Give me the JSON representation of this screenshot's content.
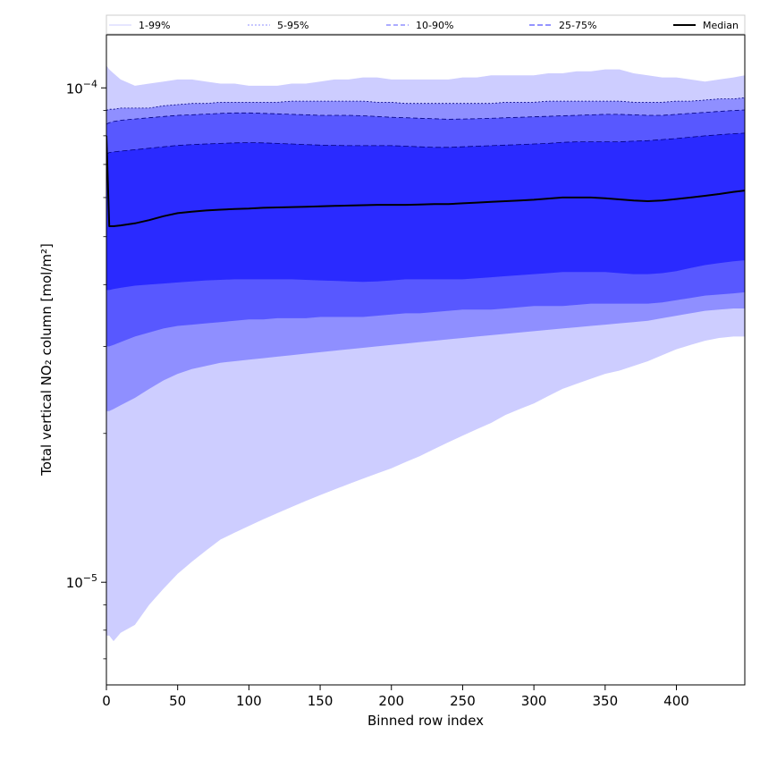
{
  "chart_data": {
    "type": "area",
    "xlabel": "Binned row index",
    "ylabel": "Total vertical NO₂ column [mol/m²]",
    "xlim": [
      0,
      448
    ],
    "ylim": [
      6.2e-06,
      0.000128
    ],
    "yscale": "log",
    "x_ticks": [
      0,
      50,
      100,
      150,
      200,
      250,
      300,
      350,
      400
    ],
    "y_ticks": [
      {
        "value": 1e-05,
        "base": "10",
        "exponent": "−5"
      },
      {
        "value": 0.0001,
        "base": "10",
        "exponent": "−4"
      }
    ],
    "legend_position": "top",
    "x": [
      0,
      2,
      5,
      10,
      20,
      30,
      40,
      50,
      60,
      70,
      80,
      90,
      100,
      110,
      120,
      130,
      140,
      150,
      160,
      170,
      180,
      190,
      200,
      210,
      220,
      230,
      240,
      250,
      260,
      270,
      280,
      290,
      300,
      310,
      320,
      330,
      340,
      350,
      360,
      370,
      380,
      390,
      400,
      410,
      420,
      430,
      440,
      448
    ],
    "bands": [
      {
        "name": "1-99%",
        "color": "#cdcdff",
        "lower": [
          7.8e-06,
          7.8e-06,
          7.6e-06,
          7.9e-06,
          8.2e-06,
          9e-06,
          9.7e-06,
          1.04e-05,
          1.1e-05,
          1.16e-05,
          1.22e-05,
          1.26e-05,
          1.3e-05,
          1.34e-05,
          1.38e-05,
          1.42e-05,
          1.46e-05,
          1.5e-05,
          1.54e-05,
          1.58e-05,
          1.62e-05,
          1.66e-05,
          1.7e-05,
          1.75e-05,
          1.8e-05,
          1.86e-05,
          1.92e-05,
          1.98e-05,
          2.04e-05,
          2.1e-05,
          2.18e-05,
          2.24e-05,
          2.3e-05,
          2.38e-05,
          2.46e-05,
          2.52e-05,
          2.58e-05,
          2.64e-05,
          2.68e-05,
          2.74e-05,
          2.8e-05,
          2.88e-05,
          2.96e-05,
          3.02e-05,
          3.08e-05,
          3.12e-05,
          3.14e-05,
          3.14e-05
        ],
        "upper": [
          0.000111,
          0.000109,
          0.000107,
          0.000104,
          0.000101,
          0.000102,
          0.000103,
          0.000104,
          0.000104,
          0.000103,
          0.000102,
          0.000102,
          0.000101,
          0.000101,
          0.000101,
          0.000102,
          0.000102,
          0.000103,
          0.000104,
          0.000104,
          0.000105,
          0.000105,
          0.000104,
          0.000104,
          0.000104,
          0.000104,
          0.000104,
          0.000105,
          0.000105,
          0.000106,
          0.000106,
          0.000106,
          0.000106,
          0.000107,
          0.000107,
          0.000108,
          0.000108,
          0.000109,
          0.000109,
          0.000107,
          0.000106,
          0.000105,
          0.000105,
          0.000104,
          0.000103,
          0.000104,
          0.000105,
          0.000106
        ]
      },
      {
        "name": "5-95%",
        "color": "#8f8fff",
        "lower": [
          2.22e-05,
          2.22e-05,
          2.24e-05,
          2.28e-05,
          2.36e-05,
          2.46e-05,
          2.56e-05,
          2.64e-05,
          2.7e-05,
          2.74e-05,
          2.78e-05,
          2.8e-05,
          2.82e-05,
          2.84e-05,
          2.86e-05,
          2.88e-05,
          2.9e-05,
          2.92e-05,
          2.94e-05,
          2.96e-05,
          2.98e-05,
          3e-05,
          3.02e-05,
          3.04e-05,
          3.06e-05,
          3.08e-05,
          3.1e-05,
          3.12e-05,
          3.14e-05,
          3.16e-05,
          3.18e-05,
          3.2e-05,
          3.22e-05,
          3.24e-05,
          3.26e-05,
          3.28e-05,
          3.3e-05,
          3.32e-05,
          3.34e-05,
          3.36e-05,
          3.38e-05,
          3.42e-05,
          3.46e-05,
          3.5e-05,
          3.54e-05,
          3.56e-05,
          3.58e-05,
          3.58e-05
        ],
        "upper": [
          9e-05,
          9.05e-05,
          9.05e-05,
          9.1e-05,
          9.1e-05,
          9.1e-05,
          9.2e-05,
          9.25e-05,
          9.3e-05,
          9.3e-05,
          9.35e-05,
          9.35e-05,
          9.35e-05,
          9.35e-05,
          9.35e-05,
          9.4e-05,
          9.4e-05,
          9.4e-05,
          9.4e-05,
          9.4e-05,
          9.4e-05,
          9.35e-05,
          9.35e-05,
          9.3e-05,
          9.3e-05,
          9.3e-05,
          9.3e-05,
          9.3e-05,
          9.3e-05,
          9.3e-05,
          9.35e-05,
          9.35e-05,
          9.35e-05,
          9.4e-05,
          9.4e-05,
          9.4e-05,
          9.4e-05,
          9.4e-05,
          9.4e-05,
          9.35e-05,
          9.35e-05,
          9.35e-05,
          9.4e-05,
          9.4e-05,
          9.45e-05,
          9.5e-05,
          9.5e-05,
          9.55e-05
        ]
      },
      {
        "name": "10-90%",
        "color": "#5858ff",
        "lower": [
          3e-05,
          3e-05,
          3.02e-05,
          3.06e-05,
          3.14e-05,
          3.2e-05,
          3.26e-05,
          3.3e-05,
          3.32e-05,
          3.34e-05,
          3.36e-05,
          3.38e-05,
          3.4e-05,
          3.4e-05,
          3.42e-05,
          3.42e-05,
          3.42e-05,
          3.44e-05,
          3.44e-05,
          3.44e-05,
          3.44e-05,
          3.46e-05,
          3.48e-05,
          3.5e-05,
          3.5e-05,
          3.52e-05,
          3.54e-05,
          3.56e-05,
          3.56e-05,
          3.56e-05,
          3.58e-05,
          3.6e-05,
          3.62e-05,
          3.62e-05,
          3.62e-05,
          3.64e-05,
          3.66e-05,
          3.66e-05,
          3.66e-05,
          3.66e-05,
          3.66e-05,
          3.68e-05,
          3.72e-05,
          3.76e-05,
          3.8e-05,
          3.82e-05,
          3.84e-05,
          3.86e-05
        ],
        "upper": [
          8.45e-05,
          8.5e-05,
          8.55e-05,
          8.6e-05,
          8.65e-05,
          8.7e-05,
          8.75e-05,
          8.8e-05,
          8.82e-05,
          8.85e-05,
          8.88e-05,
          8.9e-05,
          8.9e-05,
          8.88e-05,
          8.86e-05,
          8.84e-05,
          8.82e-05,
          8.8e-05,
          8.8e-05,
          8.8e-05,
          8.78e-05,
          8.75e-05,
          8.72e-05,
          8.7e-05,
          8.68e-05,
          8.66e-05,
          8.64e-05,
          8.65e-05,
          8.66e-05,
          8.68e-05,
          8.7e-05,
          8.72e-05,
          8.74e-05,
          8.76e-05,
          8.78e-05,
          8.8e-05,
          8.82e-05,
          8.84e-05,
          8.84e-05,
          8.82e-05,
          8.8e-05,
          8.8e-05,
          8.84e-05,
          8.88e-05,
          8.92e-05,
          8.96e-05,
          9e-05,
          9.02e-05
        ]
      },
      {
        "name": "25-75%",
        "color": "#2a2aff",
        "lower": [
          3.9e-05,
          3.9e-05,
          3.92e-05,
          3.94e-05,
          3.98e-05,
          4e-05,
          4.02e-05,
          4.04e-05,
          4.06e-05,
          4.08e-05,
          4.09e-05,
          4.1e-05,
          4.1e-05,
          4.1e-05,
          4.1e-05,
          4.1e-05,
          4.09e-05,
          4.08e-05,
          4.07e-05,
          4.06e-05,
          4.05e-05,
          4.06e-05,
          4.08e-05,
          4.1e-05,
          4.1e-05,
          4.1e-05,
          4.1e-05,
          4.1e-05,
          4.12e-05,
          4.14e-05,
          4.16e-05,
          4.18e-05,
          4.2e-05,
          4.22e-05,
          4.24e-05,
          4.24e-05,
          4.24e-05,
          4.24e-05,
          4.22e-05,
          4.2e-05,
          4.2e-05,
          4.22e-05,
          4.26e-05,
          4.32e-05,
          4.38e-05,
          4.42e-05,
          4.46e-05,
          4.48e-05
        ],
        "upper": [
          7.35e-05,
          7.4e-05,
          7.42e-05,
          7.45e-05,
          7.5e-05,
          7.55e-05,
          7.6e-05,
          7.65e-05,
          7.68e-05,
          7.7e-05,
          7.72e-05,
          7.74e-05,
          7.75e-05,
          7.74e-05,
          7.72e-05,
          7.7e-05,
          7.68e-05,
          7.66e-05,
          7.65e-05,
          7.64e-05,
          7.64e-05,
          7.64e-05,
          7.64e-05,
          7.62e-05,
          7.6e-05,
          7.58e-05,
          7.58e-05,
          7.6e-05,
          7.62e-05,
          7.64e-05,
          7.66e-05,
          7.68e-05,
          7.7e-05,
          7.72e-05,
          7.76e-05,
          7.78e-05,
          7.78e-05,
          7.78e-05,
          7.78e-05,
          7.8e-05,
          7.82e-05,
          7.86e-05,
          7.9e-05,
          7.95e-05,
          8e-05,
          8.04e-05,
          8.08e-05,
          8.1e-05
        ]
      }
    ],
    "median": {
      "name": "Median",
      "color": "#000000",
      "values": [
        8e-05,
        5.25e-05,
        5.25e-05,
        5.27e-05,
        5.32e-05,
        5.4e-05,
        5.5e-05,
        5.58e-05,
        5.62e-05,
        5.65e-05,
        5.67e-05,
        5.69e-05,
        5.7e-05,
        5.72e-05,
        5.73e-05,
        5.74e-05,
        5.75e-05,
        5.76e-05,
        5.77e-05,
        5.78e-05,
        5.79e-05,
        5.8e-05,
        5.8e-05,
        5.8e-05,
        5.81e-05,
        5.82e-05,
        5.82e-05,
        5.84e-05,
        5.86e-05,
        5.88e-05,
        5.9e-05,
        5.92e-05,
        5.94e-05,
        5.97e-05,
        6e-05,
        6e-05,
        6e-05,
        5.98e-05,
        5.95e-05,
        5.92e-05,
        5.9e-05,
        5.92e-05,
        5.96e-05,
        6e-05,
        6.05e-05,
        6.1e-05,
        6.16e-05,
        6.2e-05
      ]
    },
    "legend": [
      {
        "label": "1-99%",
        "color": "#cdcdff",
        "dash": "none"
      },
      {
        "label": "5-95%",
        "color": "#8f8fff",
        "dash": "2,2"
      },
      {
        "label": "10-90%",
        "color": "#5858ff",
        "dash": "5,3"
      },
      {
        "label": "25-75%",
        "color": "#2a2aff",
        "dash": "6,3"
      },
      {
        "label": "Median",
        "color": "#000000",
        "dash": "none"
      }
    ]
  }
}
